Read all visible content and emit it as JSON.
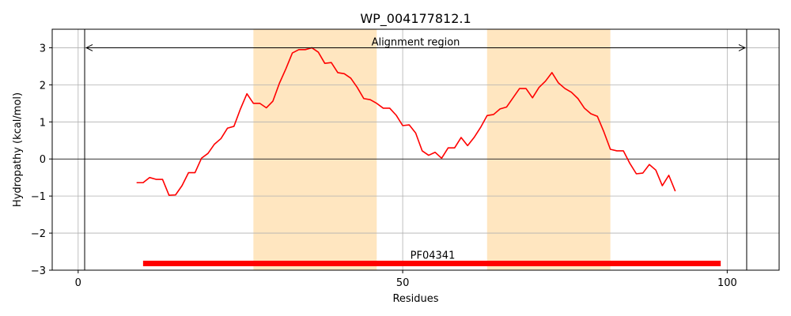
{
  "chart_data": {
    "type": "line",
    "title": "WP_004177812.1",
    "xlabel": "Residues",
    "ylabel": "Hydropathy (kcal/mol)",
    "xlim": [
      -4,
      108
    ],
    "ylim": [
      -3,
      3.5
    ],
    "xticks": [
      0,
      50,
      100
    ],
    "yticks": [
      -3,
      -2,
      -1,
      0,
      1,
      2,
      3
    ],
    "tick_labels": {
      "x": [
        "0",
        "50",
        "100"
      ],
      "y": [
        "−3",
        "−2",
        "−1",
        "0",
        "1",
        "2",
        "3"
      ]
    },
    "grid": true,
    "colors": {
      "line": "#ff0000",
      "domain_bar": "#ff0000",
      "highlight": "#ffe6c0",
      "grid": "#b0b0b0",
      "axis": "#000000"
    },
    "highlight_regions": [
      [
        27,
        46
      ],
      [
        63,
        82
      ]
    ],
    "alignment_region": {
      "label": "Alignment region",
      "start": 1,
      "end": 103,
      "y": 3
    },
    "domain": {
      "label": "PF04341",
      "start": 10,
      "end": 99,
      "y": -2.82
    },
    "series": [
      {
        "x": [
          9,
          10,
          11,
          12,
          13,
          14,
          15,
          16,
          17,
          18,
          19,
          20,
          21,
          22,
          23,
          24,
          25,
          26,
          27,
          28,
          29,
          30,
          31,
          32,
          33,
          34,
          35,
          36,
          37,
          38,
          39,
          40,
          41,
          42,
          43,
          44,
          45,
          46,
          47,
          48,
          49,
          50,
          51,
          52,
          53,
          54,
          55,
          56,
          57,
          58,
          59,
          60,
          61,
          62,
          63,
          64,
          65,
          66,
          67,
          68,
          69,
          70,
          71,
          72,
          73,
          74,
          75,
          76,
          77,
          78,
          79,
          80,
          81,
          82,
          83,
          84,
          85,
          86,
          87,
          88,
          89,
          90,
          91,
          92
        ],
        "values": [
          -0.64,
          -0.64,
          -0.5,
          -0.55,
          -0.55,
          -0.98,
          -0.97,
          -0.72,
          -0.37,
          -0.37,
          0.02,
          0.15,
          0.4,
          0.55,
          0.83,
          0.88,
          1.35,
          1.76,
          1.5,
          1.5,
          1.38,
          1.56,
          2.04,
          2.43,
          2.86,
          2.95,
          2.95,
          3.0,
          2.88,
          2.58,
          2.6,
          2.33,
          2.3,
          2.18,
          1.93,
          1.63,
          1.6,
          1.5,
          1.37,
          1.37,
          1.18,
          0.9,
          0.92,
          0.7,
          0.22,
          0.1,
          0.18,
          0.02,
          0.3,
          0.3,
          0.58,
          0.36,
          0.58,
          0.85,
          1.17,
          1.2,
          1.35,
          1.4,
          1.65,
          1.9,
          1.9,
          1.65,
          1.93,
          2.1,
          2.33,
          2.05,
          1.9,
          1.8,
          1.63,
          1.37,
          1.22,
          1.15,
          0.73,
          0.26,
          0.22,
          0.22,
          -0.12,
          -0.4,
          -0.38,
          -0.15,
          -0.3,
          -0.72,
          -0.44,
          -0.87
        ]
      }
    ]
  }
}
